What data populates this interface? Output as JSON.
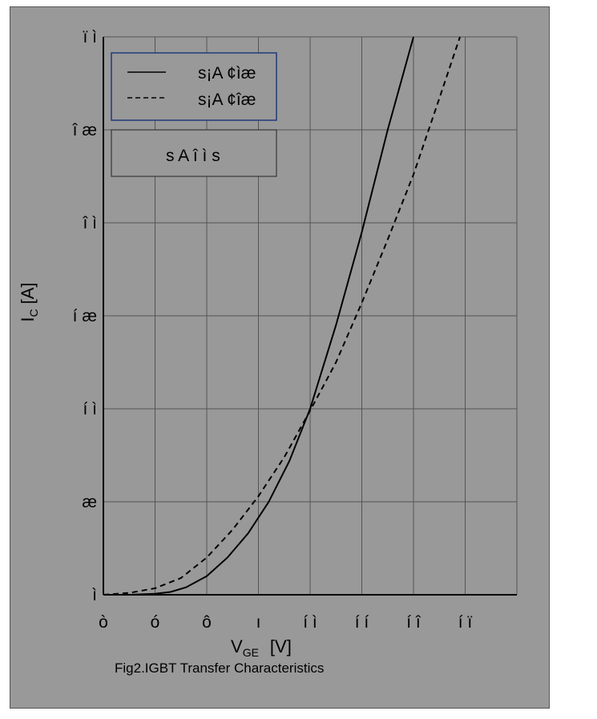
{
  "chart_data": {
    "type": "line",
    "xlabel_main": "V",
    "xlabel_sub": "GE",
    "xlabel_unit": "[V]",
    "ylabel_main": "I",
    "ylabel_sub": "C",
    "ylabel_unit": "[A]",
    "caption": "Fig2.IGBT Transfer Characteristics",
    "xlim": [
      5,
      13
    ],
    "ylim": [
      0,
      30
    ],
    "x_ticks": [
      {
        "value": 5,
        "label": "ò"
      },
      {
        "value": 6,
        "label": "ó"
      },
      {
        "value": 7,
        "label": "ô"
      },
      {
        "value": 8,
        "label": "ı"
      },
      {
        "value": 9,
        "label": "í ì"
      },
      {
        "value": 10,
        "label": "í í"
      },
      {
        "value": 11,
        "label": "í î"
      },
      {
        "value": 12,
        "label": "í ï"
      }
    ],
    "y_ticks": [
      {
        "value": 0,
        "label": "ì"
      },
      {
        "value": 5,
        "label": "æ"
      },
      {
        "value": 10,
        "label": "í ì"
      },
      {
        "value": 15,
        "label": "í æ"
      },
      {
        "value": 20,
        "label": "î ì"
      },
      {
        "value": 25,
        "label": "î æ"
      },
      {
        "value": 30,
        "label": "ï ì"
      }
    ],
    "grid": true,
    "legend_position": "top-left",
    "series": [
      {
        "name": "s¡A ¢ìæ",
        "style": "solid",
        "x": [
          5.0,
          5.5,
          6.0,
          6.3,
          6.6,
          7.0,
          7.4,
          7.8,
          8.2,
          8.6,
          9.0,
          9.5,
          10.0,
          10.5,
          11.0
        ],
        "y": [
          0.0,
          0.0,
          0.05,
          0.15,
          0.4,
          1.0,
          2.0,
          3.3,
          5.0,
          7.2,
          10.0,
          14.5,
          19.5,
          25.0,
          30.0
        ]
      },
      {
        "name": "s¡A ¢îæ",
        "style": "dashed",
        "x": [
          5.0,
          5.5,
          6.0,
          6.5,
          7.0,
          7.5,
          8.0,
          8.5,
          9.0,
          9.5,
          10.0,
          10.5,
          11.0,
          11.5,
          11.9
        ],
        "y": [
          0.0,
          0.1,
          0.35,
          0.9,
          2.0,
          3.5,
          5.3,
          7.4,
          9.9,
          12.5,
          15.7,
          19.1,
          22.6,
          26.7,
          30.0
        ]
      }
    ],
    "annotation": "s A î ì s"
  },
  "style": {
    "background": "#999999",
    "grid_color": "#555555",
    "line_color": "#000000",
    "legend_border": "#1f3a7a"
  }
}
